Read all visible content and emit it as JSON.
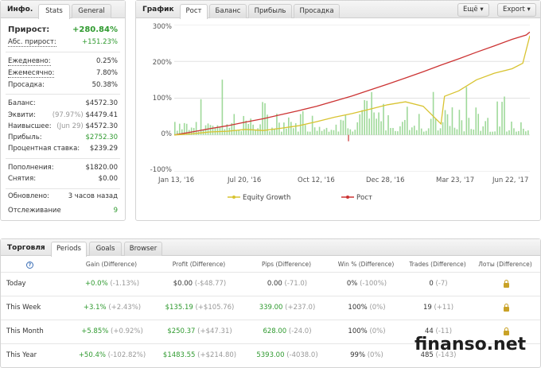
{
  "stats": {
    "title": "Инфо.",
    "tabs": [
      "Stats",
      "General"
    ],
    "growth_label": "Прирост:",
    "growth_value": "+280.84%",
    "abs_growth_label": "Абс. прирост:",
    "abs_growth_value": "+151.23%",
    "daily_label": "Ежедневно:",
    "daily_value": "0.25%",
    "monthly_label": "Ежемесячно:",
    "monthly_value": "7.80%",
    "drawdown_label": "Просадка:",
    "drawdown_value": "50.38%",
    "balance_label": "Баланс:",
    "balance_value": "$4572.30",
    "equity_label": "Эквити:",
    "equity_note": "(97.97%)",
    "equity_value": "$4479.41",
    "highest_label": "Наивысшее:",
    "highest_note": "(Jun 29)",
    "highest_value": "$4572.30",
    "profit_label": "Прибыль:",
    "profit_value": "$2752.30",
    "interest_label": "Процентная ставка:",
    "interest_value": "$239.29",
    "deposits_label": "Пополнения:",
    "deposits_value": "$1820.00",
    "withdrawals_label": "Снятия:",
    "withdrawals_value": "$0.00",
    "updated_label": "Обновлено:",
    "updated_value": "3 часов назад",
    "tracking_label": "Отслеживание",
    "tracking_value": "9"
  },
  "chart_panel": {
    "title": "График",
    "tabs": [
      "Рост",
      "Баланс",
      "Прибыль",
      "Просадка"
    ],
    "more_button": "Ещё",
    "export_button": "Export"
  },
  "chart_data": {
    "type": "line",
    "title": "",
    "xlabel": "",
    "ylabel": "",
    "ylim": [
      -100,
      300
    ],
    "y_ticks": [
      "300%",
      "200%",
      "100%",
      "0%",
      "-100%"
    ],
    "x_ticks": [
      "Jan 13, '16",
      "Jul 20, '16",
      "Oct 12, '16",
      "Dec 28, '16",
      "Mar 23, '17",
      "Jun 22, '17"
    ],
    "legend": [
      "Equity Growth",
      "Рост"
    ],
    "legend_position": "bottom",
    "grid": true,
    "series": [
      {
        "name": "Рост",
        "color": "#cc3333",
        "x": [
          0,
          0.05,
          0.1,
          0.15,
          0.2,
          0.25,
          0.3,
          0.35,
          0.4,
          0.45,
          0.5,
          0.55,
          0.6,
          0.65,
          0.7,
          0.75,
          0.8,
          0.85,
          0.9,
          0.95,
          0.99,
          1.0
        ],
        "values": [
          0,
          8,
          17,
          25,
          35,
          44,
          55,
          66,
          78,
          92,
          106,
          122,
          138,
          155,
          172,
          190,
          207,
          225,
          242,
          260,
          272,
          280
        ]
      },
      {
        "name": "Equity Growth",
        "color": "#d8c330",
        "x": [
          0,
          0.05,
          0.1,
          0.15,
          0.2,
          0.25,
          0.3,
          0.35,
          0.4,
          0.45,
          0.5,
          0.55,
          0.6,
          0.65,
          0.7,
          0.75,
          0.76,
          0.8,
          0.85,
          0.9,
          0.95,
          0.98,
          1.0
        ],
        "values": [
          0,
          3,
          8,
          10,
          15,
          12,
          18,
          25,
          36,
          48,
          58,
          70,
          82,
          90,
          78,
          30,
          105,
          120,
          150,
          168,
          180,
          195,
          270
        ]
      }
    ],
    "volume_bars": "green"
  },
  "trading": {
    "title": "Торговля",
    "tabs": [
      "Periods",
      "Goals",
      "Browser"
    ],
    "columns": [
      "Gain (Difference)",
      "Profit (Difference)",
      "Pips (Difference)",
      "Win % (Difference)",
      "Trades (Difference)",
      "Лоты (Difference)"
    ],
    "rows": [
      {
        "period": "Today",
        "gain": "+0.0%",
        "gain_diff": "(-1.13%)",
        "profit": "$0.00",
        "profit_diff": "(-$48.77)",
        "pips": "0.00",
        "pips_diff": "(-71.0)",
        "win": "0%",
        "win_diff": "(-100%)",
        "trades": "0",
        "trades_diff": "(-7)"
      },
      {
        "period": "This Week",
        "gain": "+3.1%",
        "gain_diff": "(+2.43%)",
        "profit": "$135.19",
        "profit_diff": "(+$105.76)",
        "pips": "339.00",
        "pips_diff": "(+237.0)",
        "win": "100%",
        "win_diff": "(0%)",
        "trades": "19",
        "trades_diff": "(+11)"
      },
      {
        "period": "This Month",
        "gain": "+5.85%",
        "gain_diff": "(+0.92%)",
        "profit": "$250.37",
        "profit_diff": "(+$47.31)",
        "pips": "628.00",
        "pips_diff": "(-24.0)",
        "win": "100%",
        "win_diff": "(0%)",
        "trades": "44",
        "trades_diff": "(-11)"
      },
      {
        "period": "This Year",
        "gain": "+50.4%",
        "gain_diff": "(-102.82%)",
        "profit": "$1483.55",
        "profit_diff": "(+$214.80)",
        "pips": "5393.00",
        "pips_diff": "(-4038.0)",
        "win": "99%",
        "win_diff": "(0%)",
        "trades": "485",
        "trades_diff": "(-143)"
      }
    ]
  },
  "watermark": "finanso.net",
  "colors": {
    "green": "#2f9a2f",
    "red_line": "#cc3333",
    "yellow_line": "#d8c330",
    "bars": "#9fd99a"
  }
}
